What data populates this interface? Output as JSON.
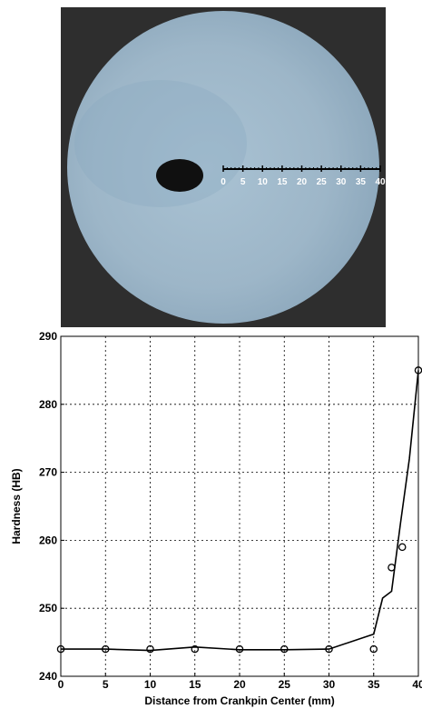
{
  "photo": {
    "scale_labels": [
      "0",
      "5",
      "10",
      "15",
      "20",
      "25",
      "30",
      "35",
      "40"
    ]
  },
  "colors": {
    "background_dark": "#2e2e2e",
    "disc": "#9fb8c9",
    "hole": "#101010",
    "series": "#000000"
  },
  "chart_data": {
    "type": "line",
    "xlabel": "Distance from Crankpin Center (mm)",
    "ylabel": "Hardness (HB)",
    "xlim": [
      0,
      40
    ],
    "ylim": [
      240,
      290
    ],
    "xticks": [
      0,
      5,
      10,
      15,
      20,
      25,
      30,
      35,
      40
    ],
    "yticks": [
      240,
      250,
      260,
      270,
      280,
      290
    ],
    "grid": true,
    "series": [
      {
        "style": "markers",
        "marker": "circle",
        "x": [
          0,
          5,
          10,
          15,
          20,
          25,
          30,
          35,
          37,
          38.2,
          40
        ],
        "y": [
          244,
          244,
          244,
          244,
          244,
          244,
          244,
          244,
          256,
          259,
          285
        ]
      },
      {
        "style": "line",
        "x": [
          0,
          5,
          10,
          15,
          20,
          25,
          30,
          35,
          36,
          37,
          38,
          39,
          40
        ],
        "y": [
          244,
          244,
          243.8,
          244.3,
          243.9,
          243.9,
          244,
          246.2,
          251.5,
          252.5,
          262.5,
          272,
          285
        ]
      }
    ]
  }
}
